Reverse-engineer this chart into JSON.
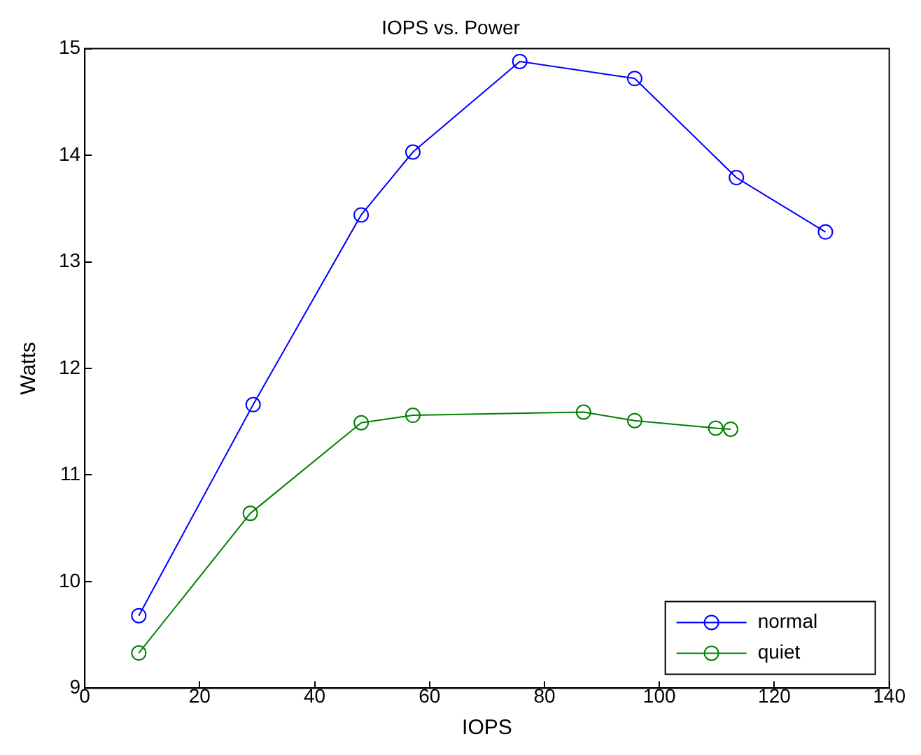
{
  "chart_data": {
    "type": "line",
    "title": "IOPS vs. Power",
    "xlabel": "IOPS",
    "ylabel": "Watts",
    "series": [
      {
        "name": "normal",
        "color": "#0000ff",
        "x": [
          9.4,
          29.3,
          48.1,
          57.1,
          75.7,
          95.7,
          113.4,
          128.9
        ],
        "values": [
          9.68,
          11.66,
          13.44,
          14.03,
          14.88,
          14.72,
          13.79,
          13.28
        ]
      },
      {
        "name": "quiet",
        "color": "#008000",
        "x": [
          9.4,
          28.8,
          48.1,
          57.1,
          86.8,
          95.7,
          109.8,
          112.4
        ],
        "values": [
          9.33,
          10.64,
          11.49,
          11.56,
          11.59,
          11.51,
          11.44,
          11.43
        ]
      }
    ],
    "xlim": [
      0,
      140
    ],
    "xticks": [
      0,
      20,
      40,
      60,
      80,
      100,
      120,
      140
    ],
    "ylim": [
      9,
      15
    ],
    "yticks": [
      9,
      10,
      11,
      12,
      13,
      14,
      15
    ],
    "grid": false,
    "legend": "bottom right",
    "marker": "circle",
    "line_style": "solid"
  }
}
